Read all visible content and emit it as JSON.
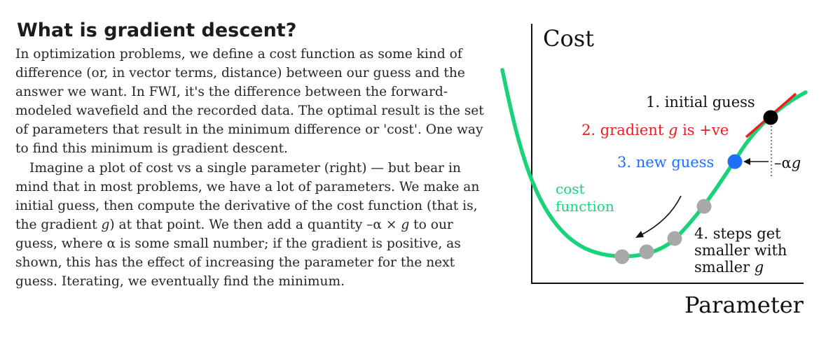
{
  "article": {
    "title": "What is gradient descent?",
    "para1": "In optimization problems, we define a cost function as some kind of difference (or, in vector terms, distance) between our guess and the answer we want. In FWI, it's the difference between the forward-modeled wavefield and the recorded data. The optimal result is the set of parameters that result in the minimum difference or 'cost'. One way to find this minimum is gradient descent.",
    "para2_a": "Imagine a plot of cost vs a single parameter (right) — but bear in mind that in most problems, we have a lot of parameters. We make an initial guess, then compute the derivative of the cost function (that is, the gradient ",
    "para2_g1": "g",
    "para2_b": ") at that point. We then add a quantity –α × ",
    "para2_g2": "g",
    "para2_c": " to our guess, where α is some small number; if the gradient is positive, as shown, this has the effect of increasing the parameter for the next guess. Iterating, we eventually find the minimum."
  },
  "diagram": {
    "y_axis_label": "Cost",
    "x_axis_label": "Parameter",
    "curve_label": [
      "cost",
      "function"
    ],
    "step1": "1. initial guess",
    "step2_prefix": "2. gradient ",
    "step2_g": "g",
    "step2_suffix": " is +ve",
    "step3": "3. new guess",
    "step4": [
      "4. steps get",
      "smaller with",
      "smaller "
    ],
    "step4_g": "g",
    "update_prefix": "–α",
    "update_g": "g",
    "colors": {
      "curve": "#19d27a",
      "tangent": "#e8211e",
      "initial_guess": "#000000",
      "new_guess": "#1f6fff",
      "steps": "#a8a8a8",
      "step2_text": "#e8211e",
      "step3_text": "#1f6fff",
      "curve_text": "#19d27a"
    }
  }
}
